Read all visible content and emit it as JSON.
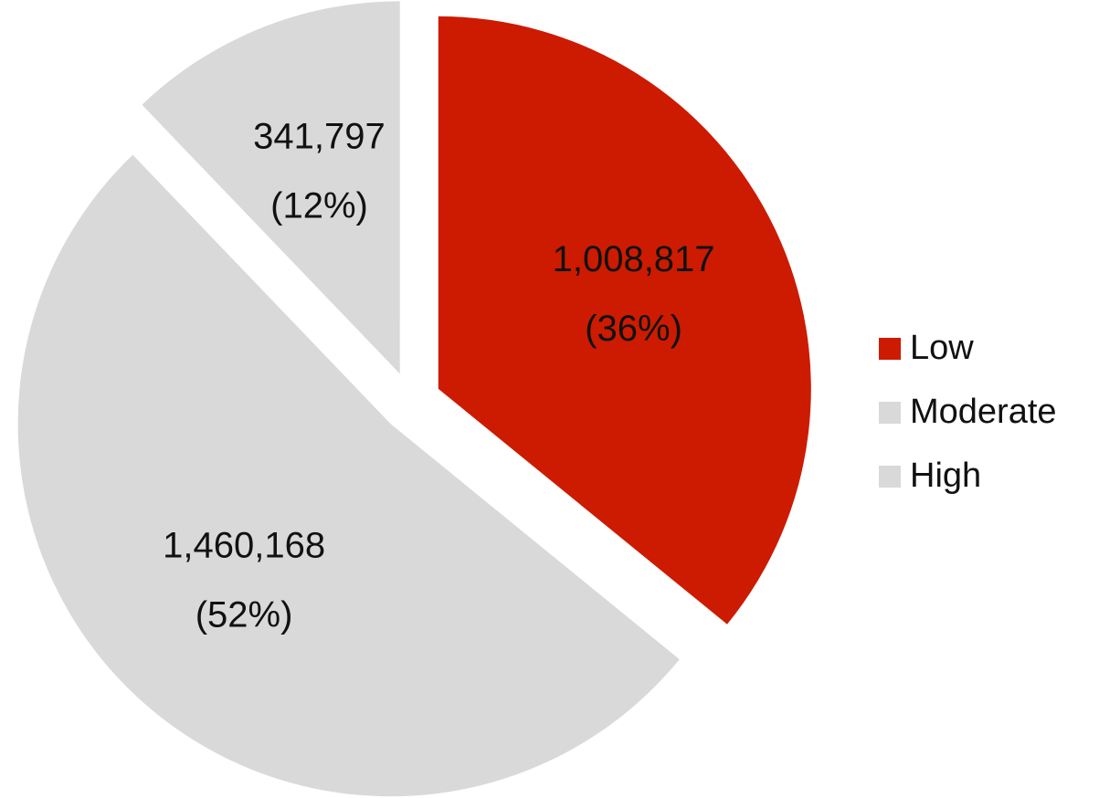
{
  "chart_data": {
    "type": "pie",
    "categories": [
      "Low",
      "Moderate",
      "High"
    ],
    "values": [
      1008817,
      1460168,
      341797
    ],
    "value_labels": [
      "1,008,817",
      "1,460,168",
      "341,797"
    ],
    "percent_labels": [
      "(36%)",
      "(52%)",
      "(12%)"
    ],
    "colors": [
      "#cc1b00",
      "#d9d9d9",
      "#d9d9d9"
    ],
    "legend": "right"
  }
}
